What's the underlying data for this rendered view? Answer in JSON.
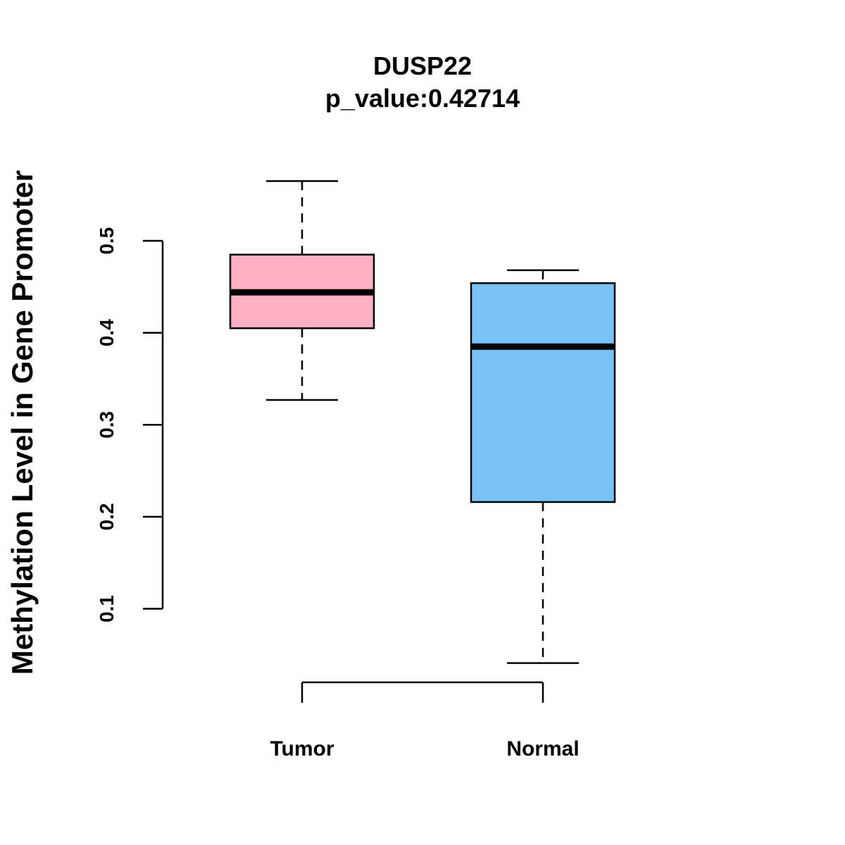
{
  "chart_data": {
    "type": "box",
    "title": "DUSP22",
    "subtitle": "p_value:0.42714",
    "xlabel": "",
    "ylabel": "Methylation Level in Gene Promoter",
    "ylim": [
      0.1,
      0.5
    ],
    "yticks": [
      "0.1",
      "0.2",
      "0.3",
      "0.4",
      "0.5"
    ],
    "categories": [
      "Tumor",
      "Normal"
    ],
    "series": [
      {
        "name": "Tumor",
        "color": "#FFB1C3",
        "whisker_low": 0.327,
        "q1": 0.405,
        "median": 0.444,
        "q3": 0.485,
        "whisker_high": 0.565
      },
      {
        "name": "Normal",
        "color": "#79C2F8",
        "whisker_low": 0.041,
        "q1": 0.216,
        "median": 0.385,
        "q3": 0.454,
        "whisker_high": 0.468
      }
    ]
  }
}
